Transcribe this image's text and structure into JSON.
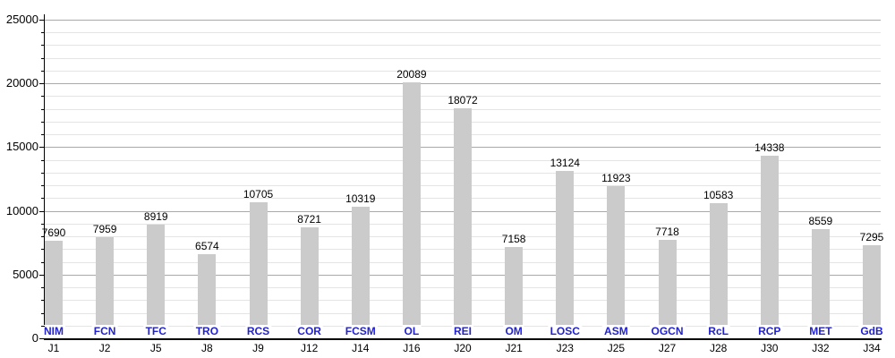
{
  "chart_data": {
    "type": "bar",
    "title": "",
    "xlabel": "",
    "ylabel": "",
    "ylim": [
      0,
      25000
    ],
    "y_major_step": 5000,
    "y_minor_step": 1000,
    "y_tick_labels": [
      "0",
      "5000",
      "10000",
      "15000",
      "20000",
      "25000"
    ],
    "grid": "on",
    "legend_position": "none",
    "categories": [
      "J1",
      "J2",
      "J5",
      "J8",
      "J9",
      "J12",
      "J14",
      "J16",
      "J20",
      "J21",
      "J23",
      "J25",
      "J27",
      "J28",
      "J30",
      "J32",
      "J34"
    ],
    "bar_bottom_labels": [
      "NIM",
      "FCN",
      "TFC",
      "TRO",
      "RCS",
      "COR",
      "FCSM",
      "OL",
      "REI",
      "OM",
      "LOSC",
      "ASM",
      "OGCN",
      "RcL",
      "RCP",
      "MET",
      "GdB"
    ],
    "values": [
      7690,
      7959,
      8919,
      6574,
      10705,
      8721,
      10319,
      20089,
      18072,
      7158,
      13124,
      11923,
      7718,
      10583,
      14338,
      8559,
      7295
    ],
    "bars": [
      {
        "matchday": "J1",
        "team": "NIM",
        "value": 7690
      },
      {
        "matchday": "J2",
        "team": "FCN",
        "value": 7959
      },
      {
        "matchday": "J5",
        "team": "TFC",
        "value": 8919
      },
      {
        "matchday": "J8",
        "team": "TRO",
        "value": 6574
      },
      {
        "matchday": "J9",
        "team": "RCS",
        "value": 10705
      },
      {
        "matchday": "J12",
        "team": "COR",
        "value": 8721
      },
      {
        "matchday": "J14",
        "team": "FCSM",
        "value": 10319
      },
      {
        "matchday": "J16",
        "team": "OL",
        "value": 20089
      },
      {
        "matchday": "J20",
        "team": "REI",
        "value": 18072
      },
      {
        "matchday": "J21",
        "team": "OM",
        "value": 7158
      },
      {
        "matchday": "J23",
        "team": "LOSC",
        "value": 13124
      },
      {
        "matchday": "J25",
        "team": "ASM",
        "value": 11923
      },
      {
        "matchday": "J27",
        "team": "OGCN",
        "value": 7718
      },
      {
        "matchday": "J28",
        "team": "RcL",
        "value": 10583
      },
      {
        "matchday": "J30",
        "team": "RCP",
        "value": 14338
      },
      {
        "matchday": "J32",
        "team": "MET",
        "value": 8559
      },
      {
        "matchday": "J34",
        "team": "GdB",
        "value": 7295
      }
    ],
    "colors": {
      "bar": "#cbcbcb",
      "value_label": "#000000",
      "team_label": "#2222cc",
      "axis": "#000000",
      "grid_major": "#a9a9a9",
      "grid_minor": "#e4e4e4",
      "background": "#ffffff"
    }
  }
}
